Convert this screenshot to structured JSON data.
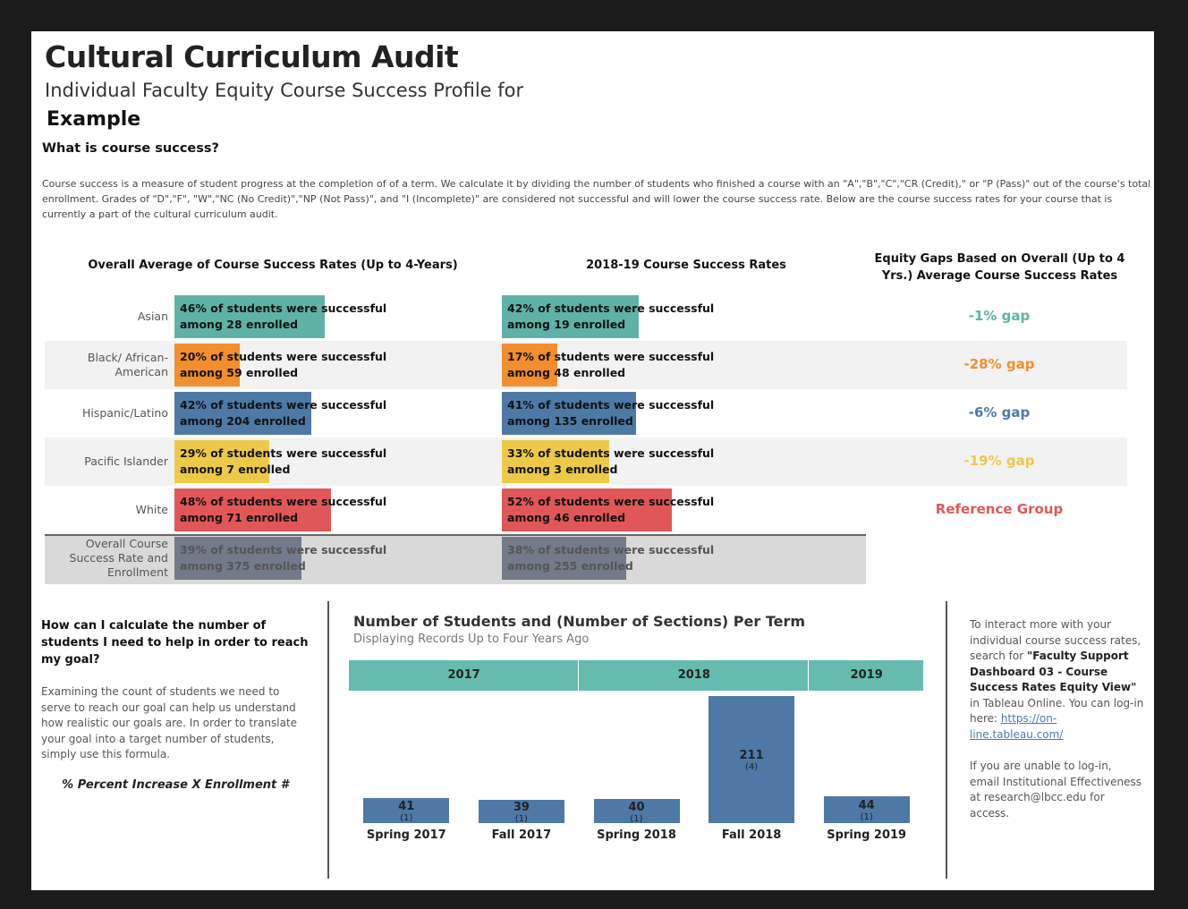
{
  "header": {
    "title": "Cultural Curriculum Audit",
    "subtitle": "Individual Faculty Equity Course Success Profile for",
    "name": "Example"
  },
  "intro": {
    "heading": "What is course success?",
    "text": "Course success is a measure of student progress at the completion of of a term. We calculate it by dividing the number of students who finished a course with an \"A\",\"B\",\"C\",\"CR (Credit),\" or \"P (Pass)\" out of the course's total enrollment. Grades of \"D\",\"F\", \"W\",\"NC (No Credit)\",\"NP (Not Pass)\", and \"I (Incomplete)\" are considered not successful and will lower the course success rate. Below are the course success rates for your course that is currently a part of the cultural curriculum audit."
  },
  "rates": {
    "overall_title": "Overall Average of Course Success Rates (Up to 4-Years)",
    "recent_title": "2018-19 Course Success Rates",
    "gap_title": "Equity Gaps Based on Overall (Up to 4 Yrs.) Average Course Success Rates",
    "rows": [
      {
        "group": "Asian",
        "color": "#5fb3a6",
        "overall": {
          "rate": 46,
          "label": "46% of students were successful",
          "enrolled": "among 28 enrolled"
        },
        "recent": {
          "rate": 42,
          "label": "42% of students were successful",
          "enrolled": "among 19 enrolled"
        },
        "gap": "-1% gap"
      },
      {
        "group": "Black/ African-American",
        "color": "#f28e2b",
        "overall": {
          "rate": 20,
          "label": "20% of students were successful",
          "enrolled": "among 59 enrolled"
        },
        "recent": {
          "rate": 17,
          "label": "17% of students were successful",
          "enrolled": "among 48 enrolled"
        },
        "gap": "-28% gap"
      },
      {
        "group": "Hispanic/Latino",
        "color": "#4e79a7",
        "overall": {
          "rate": 42,
          "label": "42% of students were successful",
          "enrolled": "among 204 enrolled"
        },
        "recent": {
          "rate": 41,
          "label": "41% of students were successful",
          "enrolled": "among 135 enrolled"
        },
        "gap": "-6% gap"
      },
      {
        "group": "Pacific Islander",
        "color": "#edc948",
        "overall": {
          "rate": 29,
          "label": "29% of students were successful",
          "enrolled": "among 7 enrolled"
        },
        "recent": {
          "rate": 33,
          "label": "33% of students were successful",
          "enrolled": "among 3 enrolled"
        },
        "gap": "-19% gap"
      },
      {
        "group": "White",
        "color": "#e15759",
        "overall": {
          "rate": 48,
          "label": "48% of students were successful",
          "enrolled": "among 71 enrolled"
        },
        "recent": {
          "rate": 52,
          "label": "52% of students were successful",
          "enrolled": "among 46 enrolled"
        },
        "gap": "Reference Group"
      },
      {
        "group": "Overall Course Success Rate and Enrollment",
        "color": "#737b88",
        "overall": {
          "rate": 39,
          "label": "39% of students were successful",
          "enrolled": "among 375 enrolled"
        },
        "recent": {
          "rate": 38,
          "label": "38% of students were successful",
          "enrolled": "among 255 enrolled"
        }
      }
    ]
  },
  "goal": {
    "heading": "How can I calculate the number of students I need to help in order to reach my goal?",
    "text": "Examining the count of students we need to serve to reach our goal can help us understand how realistic our goals are. In order to translate your goal into a target number of students, simply use this formula.",
    "formula": "% Percent Increase X Enrollment #"
  },
  "chart_data": {
    "type": "bar",
    "title": "Number of Students and (Number of Sections) Per Term",
    "subtitle": "Displaying Records Up to Four Years Ago",
    "years": [
      "2017",
      "2018",
      "2019"
    ],
    "categories": [
      "Spring 2017",
      "Fall 2017",
      "Spring 2018",
      "Fall 2018",
      "Spring 2019"
    ],
    "values": [
      41,
      39,
      40,
      211,
      44
    ],
    "sections": [
      1,
      1,
      1,
      4,
      1
    ],
    "section_labels": [
      "(1)",
      "(1)",
      "(1)",
      "(4)",
      "(1)"
    ],
    "color": "#4e79a7",
    "band_color": "#65bcae"
  },
  "side": {
    "text1": "To interact more with your individual course success rates, search for ",
    "bold1": "\"Faculty Support Dashboard 03 - Course Success Rates Equity View\"",
    "text2": " in Tableau Online. You can log-in here: ",
    "link": "https://on-line.tableau.com/",
    "text3": "If you are unable to log-in, email Institutional Effectiveness at research@lbcc.edu for access."
  }
}
